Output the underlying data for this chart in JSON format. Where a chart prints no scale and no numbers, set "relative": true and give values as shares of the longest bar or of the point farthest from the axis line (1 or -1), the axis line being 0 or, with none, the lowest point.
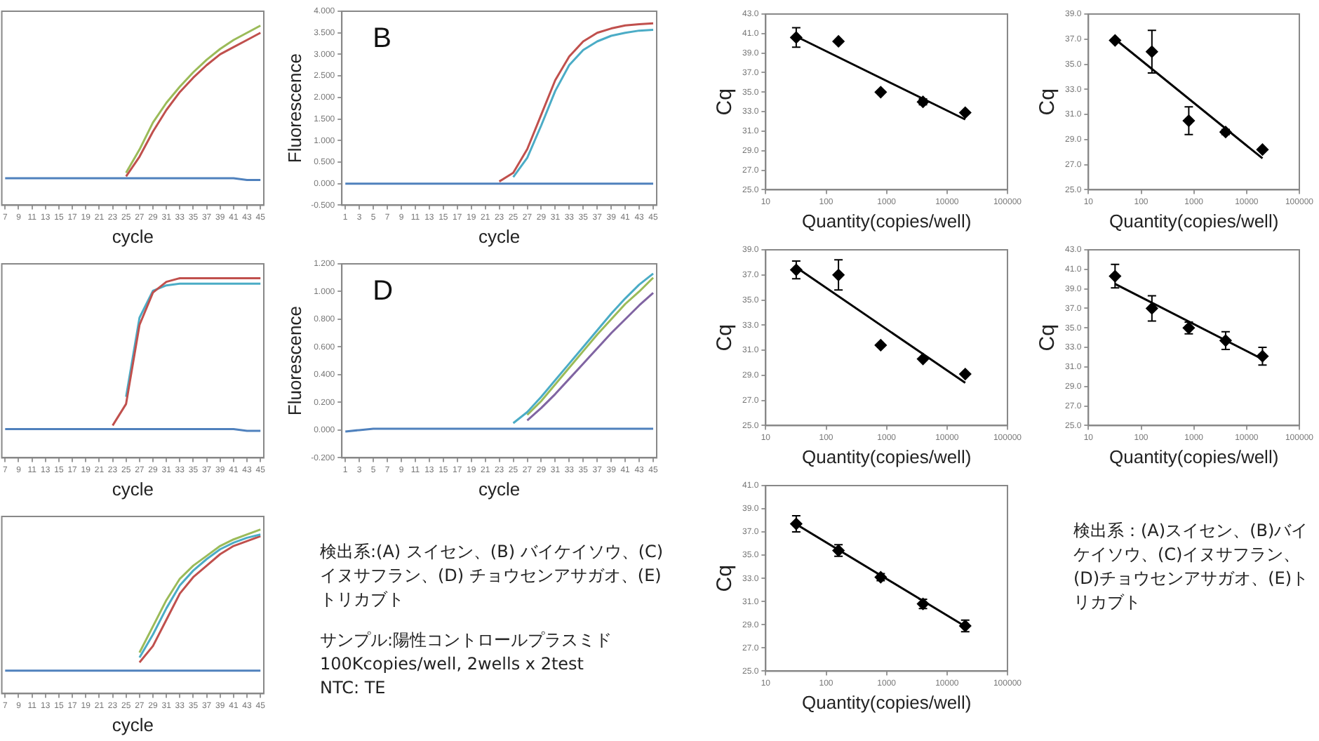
{
  "chart_data": [
    {
      "type": "line",
      "relative": true,
      "xlabel": "cycle",
      "marker": "none",
      "xlim": [
        6.5,
        45.5
      ],
      "xticks": [
        7,
        9,
        11,
        13,
        15,
        17,
        19,
        21,
        23,
        25,
        27,
        29,
        31,
        33,
        35,
        37,
        39,
        41,
        43,
        45
      ],
      "x": [
        7,
        9,
        11,
        13,
        15,
        17,
        19,
        21,
        23,
        25,
        27,
        29,
        31,
        33,
        35,
        37,
        39,
        41,
        43,
        45
      ],
      "series": [
        {
          "color": "#9bbb59",
          "values": [
            null,
            null,
            null,
            null,
            null,
            null,
            null,
            null,
            null,
            0.18,
            0.31,
            0.46,
            0.57,
            0.66,
            0.74,
            0.81,
            0.87,
            0.92,
            0.96,
            1.0
          ]
        },
        {
          "color": "#c0504d",
          "values": [
            null,
            null,
            null,
            null,
            null,
            null,
            null,
            null,
            null,
            0.16,
            0.27,
            0.41,
            0.53,
            0.63,
            0.71,
            0.78,
            0.84,
            0.88,
            0.92,
            0.96
          ]
        },
        {
          "color": "#4f81bd",
          "values": [
            0.15,
            0.15,
            0.15,
            0.15,
            0.15,
            0.15,
            0.15,
            0.15,
            0.15,
            0.15,
            0.15,
            0.15,
            0.15,
            0.15,
            0.15,
            0.15,
            0.15,
            0.15,
            0.14,
            0.14
          ]
        }
      ]
    },
    {
      "type": "line",
      "xlabel": "cycle",
      "ylabel": "Fluorescence",
      "annotations": [
        "B"
      ],
      "marker": "none",
      "xlim": [
        0.5,
        45.5
      ],
      "xticks": [
        1,
        3,
        5,
        7,
        9,
        11,
        13,
        15,
        17,
        19,
        21,
        23,
        25,
        27,
        29,
        31,
        33,
        35,
        37,
        39,
        41,
        43,
        45
      ],
      "ylim": [
        -0.5,
        4
      ],
      "yticks": [
        {
          "value": -0.5,
          "label": "-0.500"
        },
        {
          "value": 0,
          "label": "0.000"
        },
        {
          "value": 0.5,
          "label": "0.500"
        },
        {
          "value": 1,
          "label": "1.000"
        },
        {
          "value": 1.5,
          "label": "1.500"
        },
        {
          "value": 2,
          "label": "2.000"
        },
        {
          "value": 2.5,
          "label": "2.500"
        },
        {
          "value": 3,
          "label": "3.000"
        },
        {
          "value": 3.5,
          "label": "3.500"
        },
        {
          "value": 4,
          "label": "4.000"
        }
      ],
      "x": [
        1,
        3,
        5,
        7,
        9,
        11,
        13,
        15,
        17,
        19,
        21,
        23,
        25,
        27,
        29,
        31,
        33,
        35,
        37,
        39,
        41,
        43,
        45
      ],
      "series": [
        {
          "color": "#c0504d",
          "values": [
            null,
            null,
            null,
            null,
            null,
            null,
            null,
            null,
            null,
            null,
            null,
            0.05,
            0.25,
            0.8,
            1.6,
            2.4,
            2.95,
            3.3,
            3.5,
            3.6,
            3.67,
            3.7,
            3.72
          ]
        },
        {
          "color": "#4bacc6",
          "values": [
            null,
            null,
            null,
            null,
            null,
            null,
            null,
            null,
            null,
            null,
            null,
            null,
            0.15,
            0.6,
            1.35,
            2.15,
            2.75,
            3.1,
            3.3,
            3.43,
            3.5,
            3.55,
            3.57
          ]
        },
        {
          "color": "#4f81bd",
          "values": [
            0,
            0,
            0,
            0,
            0,
            0,
            0,
            0,
            0,
            0,
            0,
            0,
            0,
            0,
            0,
            0,
            0,
            0,
            0,
            0,
            0,
            0,
            0
          ]
        }
      ]
    },
    {
      "type": "line",
      "relative": true,
      "xlabel": "cycle",
      "marker": "none",
      "xlim": [
        6.5,
        45.5
      ],
      "xticks": [
        7,
        9,
        11,
        13,
        15,
        17,
        19,
        21,
        23,
        25,
        27,
        29,
        31,
        33,
        35,
        37,
        39,
        41,
        43,
        45
      ],
      "x": [
        7,
        9,
        11,
        13,
        15,
        17,
        19,
        21,
        23,
        25,
        27,
        29,
        31,
        33,
        35,
        37,
        39,
        41,
        43,
        45
      ],
      "series": [
        {
          "color": "#c0504d",
          "values": [
            null,
            null,
            null,
            null,
            null,
            null,
            null,
            null,
            0.18,
            0.3,
            0.74,
            0.92,
            0.98,
            1.0,
            1.0,
            1.0,
            1.0,
            1.0,
            1.0,
            1.0
          ]
        },
        {
          "color": "#4bacc6",
          "values": [
            null,
            null,
            null,
            null,
            null,
            null,
            null,
            null,
            null,
            0.34,
            0.78,
            0.93,
            0.96,
            0.97,
            0.97,
            0.97,
            0.97,
            0.97,
            0.97,
            0.97
          ]
        },
        {
          "color": "#4f81bd",
          "values": [
            0.16,
            0.16,
            0.16,
            0.16,
            0.16,
            0.16,
            0.16,
            0.16,
            0.16,
            0.16,
            0.16,
            0.16,
            0.16,
            0.16,
            0.16,
            0.16,
            0.16,
            0.16,
            0.15,
            0.15
          ]
        }
      ]
    },
    {
      "type": "line",
      "xlabel": "cycle",
      "ylabel": "Fluorescence",
      "annotations": [
        "D"
      ],
      "marker": "none",
      "xlim": [
        0.5,
        45.5
      ],
      "xticks": [
        1,
        3,
        5,
        7,
        9,
        11,
        13,
        15,
        17,
        19,
        21,
        23,
        25,
        27,
        29,
        31,
        33,
        35,
        37,
        39,
        41,
        43,
        45
      ],
      "ylim": [
        -0.2,
        1.2
      ],
      "yticks": [
        {
          "value": -0.2,
          "label": "-0.200"
        },
        {
          "value": 0,
          "label": "0.000"
        },
        {
          "value": 0.2,
          "label": "0.200"
        },
        {
          "value": 0.4,
          "label": "0.400"
        },
        {
          "value": 0.6,
          "label": "0.600"
        },
        {
          "value": 0.8,
          "label": "0.800"
        },
        {
          "value": 1,
          "label": "1.000"
        },
        {
          "value": 1.2,
          "label": "1.200"
        }
      ],
      "x": [
        1,
        3,
        5,
        7,
        9,
        11,
        13,
        15,
        17,
        19,
        21,
        23,
        25,
        27,
        29,
        31,
        33,
        35,
        37,
        39,
        41,
        43,
        45
      ],
      "series": [
        {
          "color": "#4bacc6",
          "values": [
            null,
            null,
            null,
            null,
            null,
            null,
            null,
            null,
            null,
            null,
            null,
            null,
            0.05,
            0.13,
            0.24,
            0.36,
            0.48,
            0.6,
            0.72,
            0.84,
            0.95,
            1.05,
            1.13
          ]
        },
        {
          "color": "#9bbb59",
          "values": [
            null,
            null,
            null,
            null,
            null,
            null,
            null,
            null,
            null,
            null,
            null,
            null,
            null,
            0.11,
            0.21,
            0.33,
            0.45,
            0.57,
            0.69,
            0.8,
            0.91,
            1.0,
            1.1
          ]
        },
        {
          "color": "#8064a2",
          "values": [
            null,
            null,
            null,
            null,
            null,
            null,
            null,
            null,
            null,
            null,
            null,
            null,
            null,
            0.07,
            0.16,
            0.26,
            0.37,
            0.48,
            0.59,
            0.7,
            0.8,
            0.9,
            0.99
          ]
        },
        {
          "color": "#4f81bd",
          "values": [
            -0.01,
            0,
            0.01,
            0.01,
            0.01,
            0.01,
            0.01,
            0.01,
            0.01,
            0.01,
            0.01,
            0.01,
            0.01,
            0.01,
            0.01,
            0.01,
            0.01,
            0.01,
            0.01,
            0.01,
            0.01,
            0.01,
            0.01
          ]
        }
      ]
    },
    {
      "type": "line",
      "relative": true,
      "xlabel": "cycle",
      "marker": "none",
      "xlim": [
        6.5,
        45.5
      ],
      "xticks": [
        7,
        9,
        11,
        13,
        15,
        17,
        19,
        21,
        23,
        25,
        27,
        29,
        31,
        33,
        35,
        37,
        39,
        41,
        43,
        45
      ],
      "x": [
        7,
        9,
        11,
        13,
        15,
        17,
        19,
        21,
        23,
        25,
        27,
        29,
        31,
        33,
        35,
        37,
        39,
        41,
        43,
        45
      ],
      "series": [
        {
          "color": "#9bbb59",
          "values": [
            null,
            null,
            null,
            null,
            null,
            null,
            null,
            null,
            null,
            null,
            0.25,
            0.41,
            0.57,
            0.7,
            0.78,
            0.84,
            0.9,
            0.94,
            0.97,
            1.0
          ]
        },
        {
          "color": "#4bacc6",
          "values": [
            null,
            null,
            null,
            null,
            null,
            null,
            null,
            null,
            null,
            null,
            0.22,
            0.36,
            0.52,
            0.66,
            0.75,
            0.82,
            0.88,
            0.92,
            0.95,
            0.97
          ]
        },
        {
          "color": "#c0504d",
          "values": [
            null,
            null,
            null,
            null,
            null,
            null,
            null,
            null,
            null,
            null,
            0.19,
            0.29,
            0.45,
            0.61,
            0.71,
            0.78,
            0.85,
            0.9,
            0.93,
            0.96
          ]
        },
        {
          "color": "#4f81bd",
          "values": [
            0.14,
            0.14,
            0.14,
            0.14,
            0.14,
            0.14,
            0.14,
            0.14,
            0.14,
            0.14,
            0.14,
            0.14,
            0.14,
            0.14,
            0.14,
            0.14,
            0.14,
            0.14,
            0.14,
            0.14
          ]
        }
      ]
    },
    {
      "type": "other",
      "annotations": [
        "検出系:(A) スイセン、(B) バイケイソウ、(C) イヌサフラン、(D) チョウセンアサガオ、(E) トリカブト",
        "サンプル:陽性コントロールプラスミド",
        "100Kcopies/well, 2wells x 2test",
        "NTC: TE"
      ]
    },
    {
      "type": "scatter",
      "xlabel": "Quantity(copies/well)",
      "ylabel": "Cq",
      "log": "x",
      "marker": "diamond",
      "xlim": [
        10,
        100000
      ],
      "xticks": [
        10,
        100,
        1000,
        10000,
        100000
      ],
      "ylim": [
        25,
        43
      ],
      "yticks": [
        {
          "value": 25,
          "label": "25.0"
        },
        {
          "value": 27,
          "label": "27.0"
        },
        {
          "value": 29,
          "label": "29.0"
        },
        {
          "value": 31,
          "label": "31.0"
        },
        {
          "value": 33,
          "label": "33.0"
        },
        {
          "value": 35,
          "label": "35.0"
        },
        {
          "value": 37,
          "label": "37.0"
        },
        {
          "value": 39,
          "label": "39.0"
        },
        {
          "value": 41,
          "label": "41.0"
        },
        {
          "value": 43,
          "label": "43.0"
        }
      ],
      "x": [
        32,
        160,
        800,
        4000,
        20000
      ],
      "series": [
        {
          "color": "#000000",
          "values": [
            40.6,
            40.2,
            35.0,
            34.0,
            32.9
          ],
          "errors": [
            1.0,
            null,
            null,
            0.3,
            null
          ]
        },
        {
          "type": "line",
          "marker": "none",
          "color": "#000000",
          "x": [
            32,
            20000
          ],
          "values": [
            40.7,
            32.2
          ]
        }
      ]
    },
    {
      "type": "scatter",
      "xlabel": "Quantity(copies/well)",
      "ylabel": "Cq",
      "log": "x",
      "marker": "diamond",
      "xlim": [
        10,
        100000
      ],
      "xticks": [
        10,
        100,
        1000,
        10000,
        100000
      ],
      "ylim": [
        25,
        39
      ],
      "yticks": [
        {
          "value": 25,
          "label": "25.0"
        },
        {
          "value": 27,
          "label": "27.0"
        },
        {
          "value": 29,
          "label": "29.0"
        },
        {
          "value": 31,
          "label": "31.0"
        },
        {
          "value": 33,
          "label": "33.0"
        },
        {
          "value": 35,
          "label": "35.0"
        },
        {
          "value": 37,
          "label": "37.0"
        },
        {
          "value": 39,
          "label": "39.0"
        }
      ],
      "x": [
        32,
        160,
        800,
        4000,
        20000
      ],
      "series": [
        {
          "color": "#000000",
          "values": [
            36.9,
            36.0,
            30.5,
            29.6,
            28.2
          ],
          "errors": [
            null,
            1.7,
            1.1,
            0.2,
            null
          ]
        },
        {
          "type": "line",
          "marker": "none",
          "color": "#000000",
          "x": [
            32,
            20000
          ],
          "values": [
            37.0,
            27.5
          ]
        }
      ]
    },
    {
      "type": "scatter",
      "xlabel": "Quantity(copies/well)",
      "ylabel": "Cq",
      "log": "x",
      "marker": "diamond",
      "xlim": [
        10,
        100000
      ],
      "xticks": [
        10,
        100,
        1000,
        10000,
        100000
      ],
      "ylim": [
        25,
        39
      ],
      "yticks": [
        {
          "value": 25,
          "label": "25.0"
        },
        {
          "value": 27,
          "label": "27.0"
        },
        {
          "value": 29,
          "label": "29.0"
        },
        {
          "value": 31,
          "label": "31.0"
        },
        {
          "value": 33,
          "label": "33.0"
        },
        {
          "value": 35,
          "label": "35.0"
        },
        {
          "value": 37,
          "label": "37.0"
        },
        {
          "value": 39,
          "label": "39.0"
        }
      ],
      "x": [
        32,
        160,
        800,
        4000,
        20000
      ],
      "series": [
        {
          "color": "#000000",
          "values": [
            37.4,
            37.0,
            31.4,
            30.3,
            29.1
          ],
          "errors": [
            0.7,
            1.2,
            null,
            null,
            null
          ]
        },
        {
          "type": "line",
          "marker": "none",
          "color": "#000000",
          "x": [
            32,
            20000
          ],
          "values": [
            37.6,
            28.4
          ]
        }
      ]
    },
    {
      "type": "scatter",
      "xlabel": "Quantity(copies/well)",
      "ylabel": "Cq",
      "log": "x",
      "marker": "diamond",
      "xlim": [
        10,
        100000
      ],
      "xticks": [
        10,
        100,
        1000,
        10000,
        100000
      ],
      "ylim": [
        25,
        43
      ],
      "yticks": [
        {
          "value": 25,
          "label": "25.0"
        },
        {
          "value": 27,
          "label": "27.0"
        },
        {
          "value": 29,
          "label": "29.0"
        },
        {
          "value": 31,
          "label": "31.0"
        },
        {
          "value": 33,
          "label": "33.0"
        },
        {
          "value": 35,
          "label": "35.0"
        },
        {
          "value": 37,
          "label": "37.0"
        },
        {
          "value": 39,
          "label": "39.0"
        },
        {
          "value": 41,
          "label": "41.0"
        },
        {
          "value": 43,
          "label": "43.0"
        }
      ],
      "x": [
        32,
        160,
        800,
        4000,
        20000
      ],
      "series": [
        {
          "color": "#000000",
          "values": [
            40.3,
            37.0,
            35.0,
            33.7,
            32.1
          ],
          "errors": [
            1.2,
            1.3,
            0.6,
            0.9,
            0.9
          ]
        },
        {
          "type": "line",
          "marker": "none",
          "color": "#000000",
          "x": [
            32,
            20000
          ],
          "values": [
            39.5,
            31.8
          ]
        }
      ]
    },
    {
      "type": "scatter",
      "xlabel": "Quantity(copies/well)",
      "ylabel": "Cq",
      "log": "x",
      "marker": "diamond",
      "xlim": [
        10,
        100000
      ],
      "xticks": [
        10,
        100,
        1000,
        10000,
        100000
      ],
      "ylim": [
        25,
        41
      ],
      "yticks": [
        {
          "value": 25,
          "label": "25.0"
        },
        {
          "value": 27,
          "label": "27.0"
        },
        {
          "value": 29,
          "label": "29.0"
        },
        {
          "value": 31,
          "label": "31.0"
        },
        {
          "value": 33,
          "label": "33.0"
        },
        {
          "value": 35,
          "label": "35.0"
        },
        {
          "value": 37,
          "label": "37.0"
        },
        {
          "value": 39,
          "label": "39.0"
        },
        {
          "value": 41,
          "label": "41.0"
        }
      ],
      "x": [
        32,
        160,
        800,
        4000,
        20000
      ],
      "series": [
        {
          "color": "#000000",
          "values": [
            37.7,
            35.4,
            33.1,
            30.8,
            28.9
          ],
          "errors": [
            0.7,
            0.5,
            0.3,
            0.4,
            0.5
          ]
        },
        {
          "type": "line",
          "marker": "none",
          "color": "#000000",
          "x": [
            36,
            18000
          ],
          "values": [
            37.5,
            29.0
          ]
        }
      ]
    },
    {
      "type": "other",
      "annotations": [
        "検出系：(A)スイセン、(B)バイケイソウ、(C)イヌサフラン、(D)チョウセンアサガオ、(E)トリカブト"
      ]
    }
  ]
}
